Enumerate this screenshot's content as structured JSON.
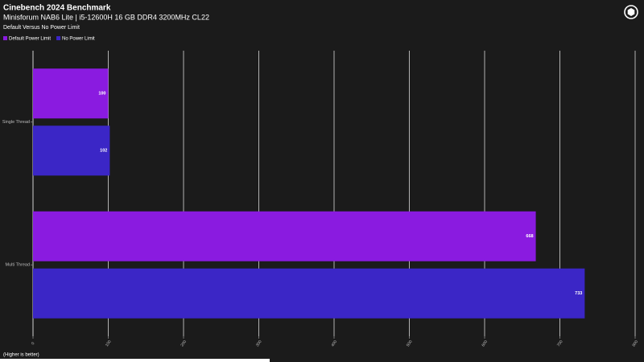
{
  "chart_data": {
    "type": "bar",
    "orientation": "horizontal",
    "title": "Cinebench 2024 Benchmark",
    "subtitle": "Minisforum NAB6 Lite | i5-12600H 16 GB DDR4 3200MHz CL22",
    "description": "Default Versus No Power Limit",
    "footnote": "(Higher is better)",
    "categories": [
      "Single Thread",
      "Multi Thread"
    ],
    "series": [
      {
        "name": "Default Power Limit",
        "color": "#8a1be0",
        "values": [
          100,
          668
        ]
      },
      {
        "name": "No Power Limit",
        "color": "#3b26c6",
        "values": [
          102,
          733
        ]
      }
    ],
    "xlim": [
      0,
      800
    ],
    "xticks": [
      0,
      100,
      200,
      300,
      400,
      500,
      600,
      700,
      800
    ],
    "grid": true,
    "legend": "top-left"
  }
}
